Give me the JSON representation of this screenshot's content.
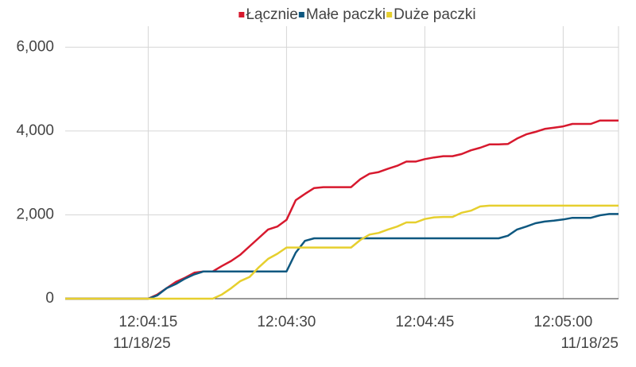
{
  "chart_data": {
    "type": "line",
    "date_label": "11/18/25",
    "x": [
      "12:04:06",
      "12:04:07",
      "12:04:08",
      "12:04:09",
      "12:04:10",
      "12:04:11",
      "12:04:12",
      "12:04:13",
      "12:04:14",
      "12:04:15",
      "12:04:16",
      "12:04:17",
      "12:04:18",
      "12:04:19",
      "12:04:20",
      "12:04:21",
      "12:04:22",
      "12:04:23",
      "12:04:24",
      "12:04:25",
      "12:04:26",
      "12:04:27",
      "12:04:28",
      "12:04:29",
      "12:04:30",
      "12:04:31",
      "12:04:32",
      "12:04:33",
      "12:04:34",
      "12:04:35",
      "12:04:36",
      "12:04:37",
      "12:04:38",
      "12:04:39",
      "12:04:40",
      "12:04:41",
      "12:04:42",
      "12:04:43",
      "12:04:44",
      "12:04:45",
      "12:04:46",
      "12:04:47",
      "12:04:48",
      "12:04:49",
      "12:04:50",
      "12:04:51",
      "12:04:52",
      "12:04:53",
      "12:04:54",
      "12:04:55",
      "12:04:56",
      "12:04:57",
      "12:04:58",
      "12:04:59",
      "12:05:00",
      "12:05:01",
      "12:05:02",
      "12:05:03",
      "12:05:04",
      "12:05:05",
      "12:05:06"
    ],
    "series": [
      {
        "name": "Łącznie",
        "color": "#d7192e",
        "values": [
          0,
          0,
          0,
          0,
          0,
          0,
          0,
          0,
          0,
          0,
          100,
          250,
          400,
          500,
          620,
          650,
          650,
          780,
          900,
          1050,
          1250,
          1450,
          1650,
          1720,
          1880,
          2350,
          2500,
          2640,
          2660,
          2660,
          2660,
          2660,
          2850,
          2980,
          3020,
          3100,
          3170,
          3270,
          3270,
          3330,
          3370,
          3400,
          3400,
          3450,
          3540,
          3600,
          3680,
          3680,
          3690,
          3820,
          3920,
          3980,
          4050,
          4080,
          4110,
          4170,
          4170,
          4170,
          4250,
          4250,
          4250
        ]
      },
      {
        "name": "Małe paczki",
        "color": "#0f5880",
        "values": [
          0,
          0,
          0,
          0,
          0,
          0,
          0,
          0,
          0,
          0,
          80,
          250,
          350,
          480,
          580,
          650,
          650,
          650,
          650,
          650,
          650,
          650,
          650,
          650,
          650,
          1100,
          1380,
          1440,
          1440,
          1440,
          1440,
          1440,
          1440,
          1440,
          1440,
          1440,
          1440,
          1440,
          1440,
          1440,
          1440,
          1440,
          1440,
          1440,
          1440,
          1440,
          1440,
          1440,
          1500,
          1650,
          1720,
          1800,
          1840,
          1860,
          1890,
          1930,
          1930,
          1930,
          1990,
          2020,
          2020
        ]
      },
      {
        "name": "Duże paczki",
        "color": "#e6cf2e",
        "values": [
          0,
          0,
          0,
          0,
          0,
          0,
          0,
          0,
          0,
          0,
          0,
          0,
          0,
          0,
          0,
          0,
          0,
          100,
          250,
          420,
          520,
          750,
          950,
          1070,
          1220,
          1220,
          1220,
          1220,
          1220,
          1220,
          1220,
          1220,
          1400,
          1530,
          1570,
          1650,
          1720,
          1820,
          1820,
          1900,
          1940,
          1950,
          1950,
          2050,
          2100,
          2200,
          2220,
          2220,
          2220,
          2220,
          2220,
          2220,
          2220,
          2220,
          2220,
          2220,
          2220,
          2220,
          2220,
          2220,
          2220
        ]
      }
    ],
    "xlim": [
      "12:04:06",
      "12:05:06"
    ],
    "xticks": [
      "12:04:15",
      "12:04:30",
      "12:04:45",
      "12:05:00"
    ],
    "ylim": [
      0,
      6500
    ],
    "yticks": [
      0,
      {
        "value": 2000,
        "label": "2,000"
      },
      {
        "value": 4000,
        "label": "4,000"
      },
      {
        "value": 6000,
        "label": "6,000"
      }
    ],
    "grid": true,
    "legend": "top"
  }
}
